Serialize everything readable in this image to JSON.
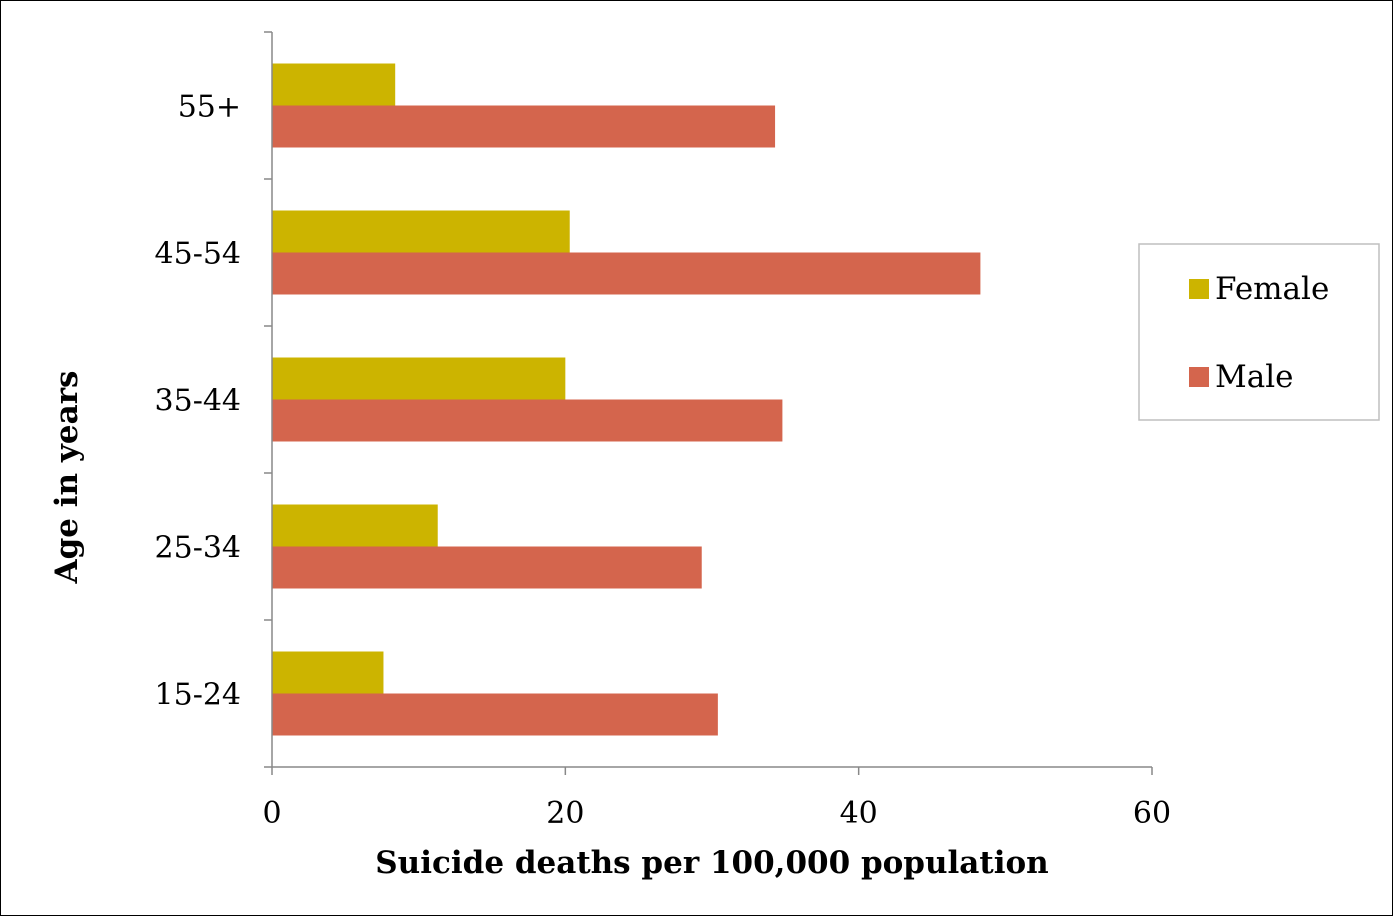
{
  "chart_data": {
    "type": "bar",
    "orientation": "horizontal",
    "categories": [
      "15-24",
      "25-34",
      "35-44",
      "45-54",
      "55+"
    ],
    "series": [
      {
        "name": "Female",
        "values": [
          7.6,
          11.3,
          20.0,
          20.3,
          8.4
        ],
        "color": "#ccb400"
      },
      {
        "name": "Male",
        "values": [
          30.4,
          29.3,
          34.8,
          48.3,
          34.3
        ],
        "color": "#d4654d"
      }
    ],
    "title": "",
    "xlabel": "Suicide deaths per 100,000 population",
    "ylabel": "Age in years",
    "xlim": [
      0,
      60
    ],
    "xticks": [
      "0",
      "20",
      "40",
      "60"
    ],
    "grid": false,
    "legend_position": "right"
  }
}
